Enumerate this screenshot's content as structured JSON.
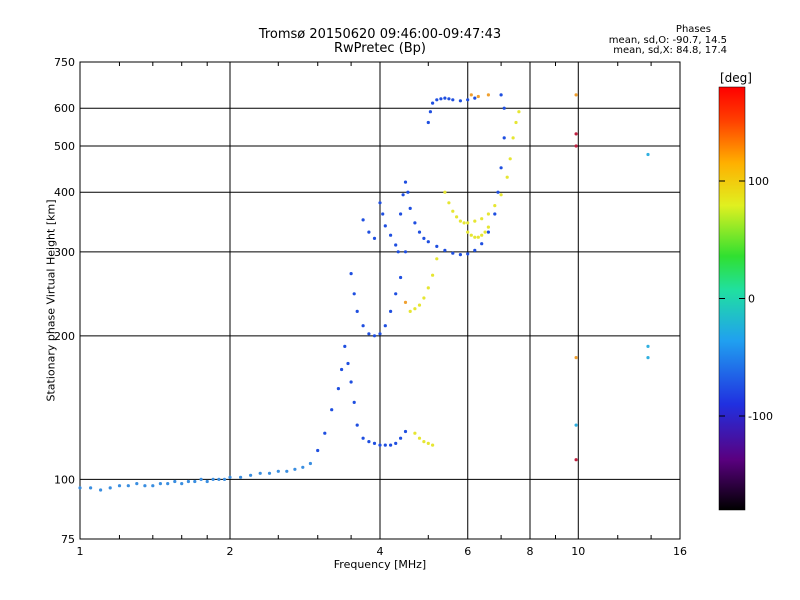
{
  "header": {
    "title_line1": "Tromsø 20150620 09:46:00-09:47:43",
    "title_line2": "RwPretec (Bp)",
    "stats_heading": "Phases",
    "stats_o": "mean, sd,O: -90.7, 14.5",
    "stats_x": "mean, sd,X: 84.8, 17.4"
  },
  "chart_data": {
    "type": "scatter",
    "xlabel": "Frequency [MHz]",
    "ylabel": "Stationary phase Virtual Height [km]",
    "xscale": "log",
    "yscale": "log",
    "xlim": [
      1,
      16
    ],
    "ylim": [
      75,
      750
    ],
    "xticks": [
      1,
      2,
      4,
      6,
      8,
      10,
      16
    ],
    "xtick_labels": [
      "1",
      "2",
      "4",
      "6",
      "8",
      "10",
      "16"
    ],
    "yticks": [
      75,
      100,
      200,
      300,
      400,
      500,
      600,
      750
    ],
    "ytick_labels": [
      "75",
      "100",
      "200",
      "300",
      "400",
      "500",
      "600",
      "750"
    ],
    "grid": true,
    "colorbar": {
      "label": "[deg]",
      "range": [
        -180,
        180
      ],
      "ticks": [
        -100,
        0,
        100
      ],
      "tick_labels": [
        "-100",
        "0",
        "100"
      ]
    },
    "series": [
      {
        "color": "#3a8ee0",
        "points": [
          [
            1.0,
            96
          ],
          [
            1.05,
            96
          ],
          [
            1.1,
            95
          ],
          [
            1.15,
            96
          ],
          [
            1.2,
            97
          ],
          [
            1.25,
            97
          ],
          [
            1.3,
            98
          ],
          [
            1.35,
            97
          ],
          [
            1.4,
            97
          ],
          [
            1.45,
            98
          ],
          [
            1.5,
            98
          ],
          [
            1.55,
            99
          ],
          [
            1.6,
            98
          ],
          [
            1.65,
            99
          ],
          [
            1.7,
            99
          ],
          [
            1.75,
            100
          ],
          [
            1.8,
            99
          ],
          [
            1.85,
            100
          ],
          [
            1.9,
            100
          ],
          [
            1.95,
            100
          ],
          [
            2.0,
            101
          ],
          [
            2.1,
            101
          ],
          [
            2.2,
            102
          ],
          [
            2.3,
            103
          ],
          [
            2.4,
            103
          ],
          [
            2.5,
            104
          ],
          [
            2.6,
            104
          ],
          [
            2.7,
            105
          ],
          [
            2.8,
            106
          ],
          [
            2.9,
            108
          ]
        ]
      },
      {
        "color": "#1f4fe0",
        "points": [
          [
            3.0,
            115
          ],
          [
            3.1,
            125
          ],
          [
            3.2,
            140
          ],
          [
            3.3,
            155
          ],
          [
            3.35,
            170
          ],
          [
            3.4,
            190
          ],
          [
            3.45,
            175
          ],
          [
            3.5,
            160
          ],
          [
            3.55,
            145
          ],
          [
            3.6,
            130
          ],
          [
            3.7,
            122
          ],
          [
            3.8,
            120
          ],
          [
            3.9,
            119
          ],
          [
            4.0,
            118
          ],
          [
            4.1,
            118
          ],
          [
            4.2,
            118
          ],
          [
            4.3,
            119
          ],
          [
            4.4,
            122
          ],
          [
            4.5,
            126
          ],
          [
            3.5,
            270
          ],
          [
            3.55,
            245
          ],
          [
            3.6,
            225
          ],
          [
            3.7,
            210
          ],
          [
            3.8,
            202
          ],
          [
            3.9,
            200
          ],
          [
            4.0,
            202
          ],
          [
            4.1,
            210
          ],
          [
            4.2,
            225
          ],
          [
            4.3,
            245
          ],
          [
            4.4,
            265
          ],
          [
            4.5,
            300
          ],
          [
            4.4,
            360
          ],
          [
            4.45,
            395
          ],
          [
            4.5,
            420
          ],
          [
            4.55,
            400
          ],
          [
            4.6,
            370
          ],
          [
            4.7,
            345
          ],
          [
            4.8,
            330
          ],
          [
            4.9,
            320
          ],
          [
            5.0,
            315
          ],
          [
            5.2,
            308
          ],
          [
            5.4,
            302
          ],
          [
            5.6,
            298
          ],
          [
            5.8,
            296
          ],
          [
            6.0,
            297
          ],
          [
            6.2,
            302
          ],
          [
            6.4,
            312
          ],
          [
            6.6,
            330
          ],
          [
            6.8,
            360
          ],
          [
            6.9,
            400
          ],
          [
            7.0,
            450
          ],
          [
            7.1,
            520
          ],
          [
            7.1,
            600
          ],
          [
            7.0,
            640
          ],
          [
            5.0,
            560
          ],
          [
            5.05,
            590
          ],
          [
            5.1,
            615
          ],
          [
            5.2,
            625
          ],
          [
            5.3,
            628
          ],
          [
            5.4,
            630
          ],
          [
            5.5,
            628
          ],
          [
            5.6,
            625
          ],
          [
            5.8,
            622
          ],
          [
            6.0,
            625
          ],
          [
            6.2,
            630
          ],
          [
            4.0,
            380
          ],
          [
            4.05,
            360
          ],
          [
            4.1,
            340
          ],
          [
            4.2,
            325
          ],
          [
            4.3,
            310
          ],
          [
            4.35,
            300
          ],
          [
            3.7,
            350
          ],
          [
            3.8,
            330
          ],
          [
            3.9,
            320
          ]
        ]
      },
      {
        "color": "#e6e632",
        "points": [
          [
            4.7,
            125
          ],
          [
            4.8,
            122
          ],
          [
            4.9,
            120
          ],
          [
            5.0,
            119
          ],
          [
            5.1,
            118
          ],
          [
            4.6,
            225
          ],
          [
            4.7,
            228
          ],
          [
            4.8,
            232
          ],
          [
            4.9,
            240
          ],
          [
            5.0,
            252
          ],
          [
            5.1,
            268
          ],
          [
            5.2,
            290
          ],
          [
            5.4,
            400
          ],
          [
            5.5,
            380
          ],
          [
            5.6,
            365
          ],
          [
            5.7,
            355
          ],
          [
            5.8,
            348
          ],
          [
            5.9,
            345
          ],
          [
            6.0,
            345
          ],
          [
            6.2,
            348
          ],
          [
            6.4,
            352
          ],
          [
            6.6,
            360
          ],
          [
            6.8,
            375
          ],
          [
            7.0,
            395
          ],
          [
            7.2,
            430
          ],
          [
            7.3,
            470
          ],
          [
            7.4,
            520
          ],
          [
            7.5,
            560
          ],
          [
            7.6,
            590
          ],
          [
            6.0,
            330
          ],
          [
            6.1,
            325
          ],
          [
            6.2,
            322
          ],
          [
            6.3,
            322
          ],
          [
            6.4,
            325
          ],
          [
            6.5,
            330
          ],
          [
            6.6,
            338
          ]
        ]
      },
      {
        "color": "#f0a030",
        "points": [
          [
            6.1,
            640
          ],
          [
            6.3,
            635
          ],
          [
            6.6,
            640
          ],
          [
            9.9,
            640
          ],
          [
            9.9,
            180
          ],
          [
            4.5,
            235
          ]
        ]
      },
      {
        "color": "#c02040",
        "points": [
          [
            9.9,
            110
          ],
          [
            9.9,
            530
          ],
          [
            9.9,
            500
          ]
        ]
      },
      {
        "color": "#30b0e0",
        "points": [
          [
            13.8,
            480
          ],
          [
            13.8,
            190
          ],
          [
            13.8,
            180
          ],
          [
            9.9,
            130
          ]
        ]
      }
    ]
  }
}
